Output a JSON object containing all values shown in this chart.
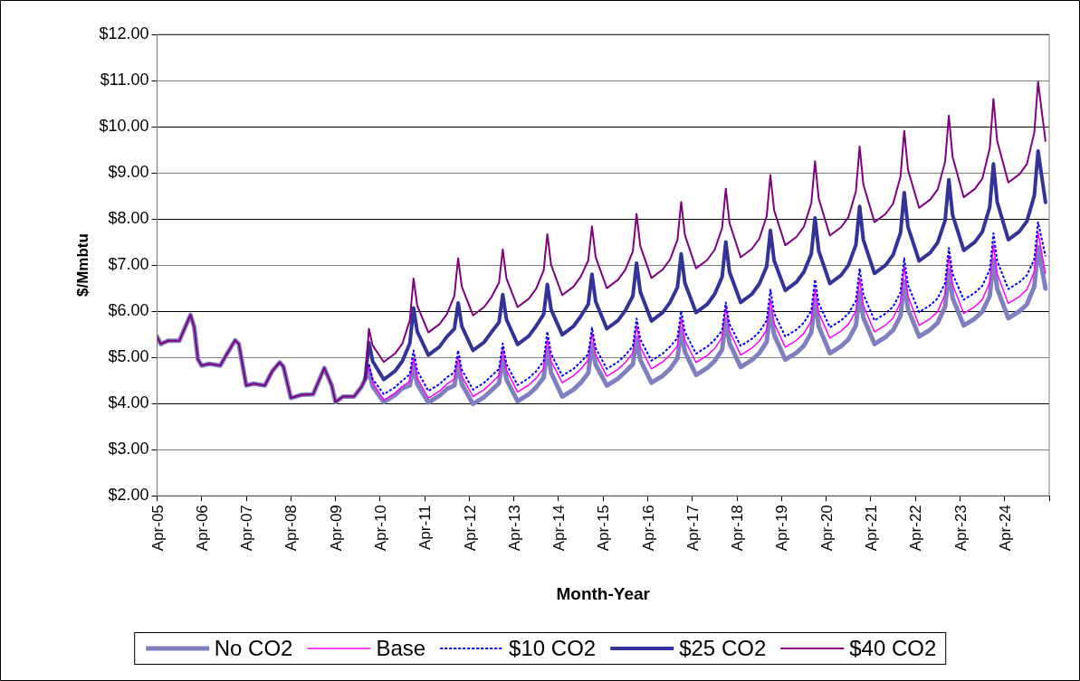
{
  "chart_data": {
    "type": "line",
    "xlabel": "Month-Year",
    "ylabel": "$/Mmbtu",
    "x": [
      "2005-04",
      "2005-05",
      "2005-07",
      "2005-10",
      "2006-01",
      "2006-02",
      "2006-03",
      "2006-04",
      "2006-06",
      "2006-09",
      "2006-11",
      "2007-01",
      "2007-02",
      "2007-04",
      "2007-06",
      "2007-09",
      "2007-11",
      "2008-01",
      "2008-02",
      "2008-04",
      "2008-07",
      "2008-10",
      "2009-01",
      "2009-03",
      "2009-04",
      "2009-06",
      "2009-09",
      "2009-11",
      "2009-12",
      "2010-01",
      "2010-02",
      "2010-05",
      "2010-08",
      "2010-10",
      "2010-12",
      "2011-01",
      "2011-02",
      "2011-05",
      "2011-08",
      "2011-10",
      "2011-12",
      "2012-01",
      "2012-02",
      "2012-05",
      "2012-08",
      "2012-10",
      "2012-12",
      "2013-01",
      "2013-02",
      "2013-05",
      "2013-08",
      "2013-10",
      "2013-12",
      "2014-01",
      "2014-02",
      "2014-05",
      "2014-08",
      "2014-10",
      "2014-12",
      "2015-01",
      "2015-02",
      "2015-05",
      "2015-08",
      "2015-10",
      "2015-12",
      "2016-01",
      "2016-02",
      "2016-05",
      "2016-08",
      "2016-10",
      "2016-12",
      "2017-01",
      "2017-02",
      "2017-05",
      "2017-08",
      "2017-10",
      "2017-12",
      "2018-01",
      "2018-02",
      "2018-05",
      "2018-08",
      "2018-10",
      "2018-12",
      "2019-01",
      "2019-02",
      "2019-05",
      "2019-08",
      "2019-10",
      "2019-12",
      "2020-01",
      "2020-02",
      "2020-05",
      "2020-08",
      "2020-10",
      "2020-12",
      "2021-01",
      "2021-02",
      "2021-05",
      "2021-08",
      "2021-10",
      "2021-12",
      "2022-01",
      "2022-02",
      "2022-05",
      "2022-08",
      "2022-10",
      "2022-12",
      "2023-01",
      "2023-02",
      "2023-05",
      "2023-08",
      "2023-10",
      "2023-12",
      "2024-01",
      "2024-02",
      "2024-05",
      "2024-08",
      "2024-10",
      "2024-12",
      "2025-01",
      "2025-03"
    ],
    "series": [
      {
        "name": "No CO2",
        "color": "#8080c0",
        "line_style": "solid",
        "values": [
          5.45,
          5.29,
          5.36,
          5.36,
          5.92,
          5.66,
          4.96,
          4.82,
          4.86,
          4.82,
          5.1,
          5.37,
          5.29,
          4.39,
          4.43,
          4.39,
          4.7,
          4.89,
          4.8,
          4.12,
          4.19,
          4.2,
          4.77,
          4.39,
          4.03,
          4.15,
          4.15,
          4.36,
          4.53,
          4.7,
          4.37,
          4.03,
          4.18,
          4.33,
          4.39,
          4.82,
          4.42,
          4.02,
          4.17,
          4.32,
          4.39,
          4.84,
          4.42,
          3.99,
          4.14,
          4.29,
          4.44,
          4.99,
          4.52,
          4.05,
          4.2,
          4.35,
          4.56,
          5.19,
          4.67,
          4.15,
          4.3,
          4.45,
          4.66,
          5.29,
          4.84,
          4.39,
          4.54,
          4.69,
          4.85,
          5.42,
          4.94,
          4.45,
          4.6,
          4.75,
          4.98,
          5.62,
          5.12,
          4.62,
          4.77,
          4.92,
          5.16,
          5.82,
          5.31,
          4.79,
          4.94,
          5.09,
          5.34,
          6.02,
          5.49,
          4.95,
          5.1,
          5.25,
          5.54,
          6.25,
          5.67,
          5.09,
          5.24,
          5.39,
          5.69,
          6.42,
          5.86,
          5.29,
          5.44,
          5.59,
          5.9,
          6.65,
          6.05,
          5.45,
          5.6,
          5.75,
          6.1,
          6.89,
          6.29,
          5.69,
          5.84,
          5.99,
          6.33,
          7.12,
          6.49,
          5.85,
          6.0,
          6.15,
          6.54,
          7.39,
          6.49
        ]
      },
      {
        "name": "Base",
        "color": "#ff00ff",
        "line_style": "solid",
        "values": [
          null,
          null,
          null,
          null,
          null,
          null,
          null,
          null,
          null,
          null,
          null,
          null,
          null,
          null,
          null,
          null,
          null,
          null,
          null,
          null,
          null,
          null,
          null,
          null,
          null,
          null,
          null,
          null,
          4.53,
          4.82,
          4.45,
          4.07,
          4.22,
          4.37,
          4.48,
          4.98,
          4.55,
          4.12,
          4.27,
          4.42,
          4.53,
          5.02,
          4.59,
          4.15,
          4.3,
          4.45,
          4.61,
          5.18,
          4.72,
          4.25,
          4.4,
          4.55,
          4.76,
          5.39,
          4.92,
          4.45,
          4.6,
          4.75,
          4.94,
          5.53,
          5.06,
          4.59,
          4.74,
          4.89,
          5.09,
          5.69,
          5.22,
          4.75,
          4.9,
          5.05,
          5.25,
          5.85,
          5.37,
          4.89,
          5.04,
          5.19,
          5.43,
          6.09,
          5.57,
          5.05,
          5.2,
          5.35,
          5.59,
          6.25,
          5.74,
          5.22,
          5.37,
          5.52,
          5.79,
          6.49,
          5.96,
          5.42,
          5.57,
          5.72,
          6.0,
          6.71,
          6.13,
          5.55,
          5.7,
          5.85,
          6.19,
          6.97,
          6.33,
          5.69,
          5.84,
          5.99,
          6.37,
          7.21,
          6.58,
          5.95,
          6.1,
          6.25,
          6.63,
          7.45,
          6.81,
          6.17,
          6.32,
          6.47,
          6.86,
          7.71,
          6.82
        ]
      },
      {
        "name": "$10 CO2",
        "color": "#0000ff",
        "line_style": "dotted",
        "values": [
          null,
          null,
          null,
          null,
          null,
          null,
          null,
          null,
          null,
          null,
          null,
          null,
          null,
          null,
          null,
          null,
          null,
          null,
          null,
          null,
          null,
          null,
          null,
          null,
          null,
          null,
          null,
          null,
          null,
          4.85,
          4.53,
          4.2,
          4.35,
          4.5,
          4.63,
          5.15,
          4.71,
          4.27,
          4.42,
          4.57,
          4.67,
          5.15,
          4.73,
          4.3,
          4.45,
          4.6,
          4.75,
          5.3,
          4.85,
          4.4,
          4.55,
          4.7,
          4.92,
          5.56,
          5.08,
          4.6,
          4.75,
          4.9,
          5.07,
          5.64,
          5.2,
          4.75,
          4.9,
          5.05,
          5.24,
          5.84,
          5.39,
          4.93,
          5.08,
          5.23,
          5.42,
          6.01,
          5.55,
          5.08,
          5.23,
          5.38,
          5.58,
          6.19,
          5.72,
          5.25,
          5.4,
          5.55,
          5.8,
          6.47,
          5.96,
          5.45,
          5.6,
          5.75,
          6.01,
          6.69,
          6.17,
          5.65,
          5.8,
          5.95,
          6.23,
          6.93,
          6.37,
          5.8,
          5.95,
          6.1,
          6.41,
          7.15,
          6.57,
          5.98,
          6.13,
          6.28,
          6.61,
          7.37,
          6.81,
          6.25,
          6.4,
          6.55,
          6.9,
          7.69,
          7.09,
          6.48,
          6.63,
          6.78,
          7.13,
          7.93,
          7.19
        ]
      },
      {
        "name": "$25 CO2",
        "color": "#333399",
        "line_style": "solid",
        "values": [
          null,
          null,
          null,
          null,
          null,
          null,
          null,
          null,
          null,
          null,
          null,
          null,
          null,
          null,
          null,
          null,
          null,
          null,
          null,
          null,
          null,
          null,
          null,
          null,
          null,
          null,
          null,
          null,
          4.53,
          5.32,
          4.92,
          4.52,
          4.7,
          4.92,
          5.3,
          6.07,
          5.56,
          5.05,
          5.23,
          5.45,
          5.62,
          6.18,
          5.67,
          5.15,
          5.33,
          5.55,
          5.76,
          6.36,
          5.82,
          5.28,
          5.46,
          5.68,
          5.93,
          6.58,
          6.04,
          5.49,
          5.67,
          5.89,
          6.15,
          6.8,
          6.21,
          5.62,
          5.8,
          6.02,
          6.33,
          7.04,
          6.42,
          5.79,
          5.97,
          6.19,
          6.52,
          7.24,
          6.61,
          5.97,
          6.15,
          6.37,
          6.74,
          7.5,
          6.85,
          6.19,
          6.37,
          6.59,
          6.97,
          7.75,
          7.1,
          6.45,
          6.63,
          6.85,
          7.24,
          8.02,
          7.31,
          6.6,
          6.78,
          7.0,
          7.44,
          8.27,
          7.55,
          6.82,
          7.0,
          7.22,
          7.7,
          8.57,
          7.83,
          7.09,
          7.27,
          7.49,
          7.97,
          8.85,
          8.09,
          7.32,
          7.5,
          7.72,
          8.26,
          9.19,
          8.37,
          7.55,
          7.73,
          7.95,
          8.51,
          9.47,
          8.36
        ]
      },
      {
        "name": "$40 CO2",
        "color": "#800080",
        "line_style": "solid",
        "values": [
          5.45,
          5.29,
          5.36,
          5.36,
          5.92,
          5.66,
          4.96,
          4.82,
          4.86,
          4.82,
          5.1,
          5.37,
          5.29,
          4.39,
          4.43,
          4.39,
          4.7,
          4.89,
          4.8,
          4.12,
          4.19,
          4.2,
          4.77,
          4.39,
          4.03,
          4.15,
          4.15,
          4.36,
          4.53,
          5.62,
          5.26,
          4.9,
          5.08,
          5.3,
          5.8,
          6.71,
          6.12,
          5.54,
          5.72,
          5.94,
          6.34,
          7.15,
          6.53,
          5.91,
          6.09,
          6.31,
          6.62,
          7.34,
          6.71,
          6.09,
          6.27,
          6.49,
          6.88,
          7.67,
          7.01,
          6.35,
          6.53,
          6.75,
          7.1,
          7.84,
          7.17,
          6.5,
          6.68,
          6.9,
          7.3,
          8.11,
          7.41,
          6.72,
          6.9,
          7.12,
          7.55,
          8.37,
          7.65,
          6.93,
          7.11,
          7.33,
          7.8,
          8.66,
          7.91,
          7.17,
          7.35,
          7.57,
          8.06,
          8.95,
          8.19,
          7.43,
          7.61,
          7.83,
          8.34,
          9.25,
          8.44,
          7.64,
          7.82,
          8.04,
          8.6,
          9.57,
          8.75,
          7.93,
          8.11,
          8.33,
          8.92,
          9.91,
          9.07,
          8.24,
          8.42,
          8.64,
          9.24,
          10.24,
          9.35,
          8.47,
          8.65,
          8.87,
          9.53,
          10.6,
          9.69,
          8.79,
          8.97,
          9.19,
          9.88,
          10.97,
          9.69
        ]
      }
    ],
    "xlim": [
      "2005-04",
      "2025-04"
    ],
    "xticks": [
      {
        "value": "2005-04",
        "label": "Apr-05"
      },
      {
        "value": "2006-04",
        "label": "Apr-06"
      },
      {
        "value": "2007-04",
        "label": "Apr-07"
      },
      {
        "value": "2008-04",
        "label": "Apr-08"
      },
      {
        "value": "2009-04",
        "label": "Apr-09"
      },
      {
        "value": "2010-04",
        "label": "Apr-10"
      },
      {
        "value": "2011-04",
        "label": "Apr-11"
      },
      {
        "value": "2012-04",
        "label": "Apr-12"
      },
      {
        "value": "2013-04",
        "label": "Apr-13"
      },
      {
        "value": "2014-04",
        "label": "Apr-14"
      },
      {
        "value": "2015-04",
        "label": "Apr-15"
      },
      {
        "value": "2016-04",
        "label": "Apr-16"
      },
      {
        "value": "2017-04",
        "label": "Apr-17"
      },
      {
        "value": "2018-04",
        "label": "Apr-18"
      },
      {
        "value": "2019-04",
        "label": "Apr-19"
      },
      {
        "value": "2020-04",
        "label": "Apr-20"
      },
      {
        "value": "2021-04",
        "label": "Apr-21"
      },
      {
        "value": "2022-04",
        "label": "Apr-22"
      },
      {
        "value": "2023-04",
        "label": "Apr-23"
      },
      {
        "value": "2024-04",
        "label": "Apr-24"
      },
      {
        "value": "2025-04",
        "label": null
      }
    ],
    "ylim": [
      2,
      12
    ],
    "yticks": [
      {
        "value": 2,
        "label": "$2.00"
      },
      {
        "value": 3,
        "label": "$3.00"
      },
      {
        "value": 4,
        "label": "$4.00"
      },
      {
        "value": 5,
        "label": "$5.00"
      },
      {
        "value": 6,
        "label": "$6.00"
      },
      {
        "value": 7,
        "label": "$7.00"
      },
      {
        "value": 8,
        "label": "$8.00"
      },
      {
        "value": 9,
        "label": "$9.00"
      },
      {
        "value": 10,
        "label": "$10.00"
      },
      {
        "value": 11,
        "label": "$11.00"
      },
      {
        "value": 12,
        "label": "$12.00"
      }
    ],
    "grid": "y",
    "legend": "bottom",
    "marker": "none"
  }
}
